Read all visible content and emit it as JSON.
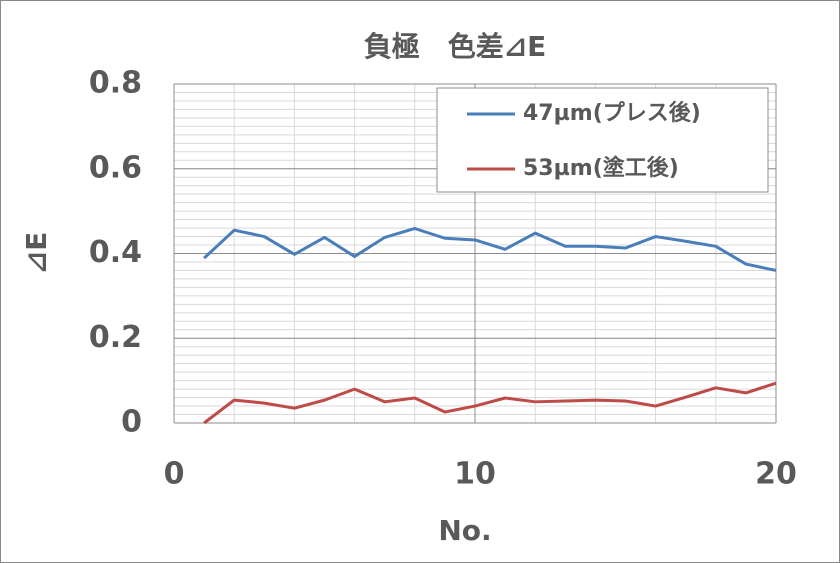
{
  "chart_data": {
    "type": "line",
    "title": "負極　色差⊿E",
    "x_label": "No.",
    "y_label": "⊿E",
    "x": [
      1,
      2,
      3,
      4,
      5,
      6,
      7,
      8,
      9,
      10,
      11,
      12,
      13,
      14,
      15,
      16,
      17,
      18,
      19,
      20
    ],
    "series": [
      {
        "name": "47µm(プレス後)",
        "color": "#4a7ebb",
        "values": [
          0.389,
          0.455,
          0.44,
          0.398,
          0.438,
          0.393,
          0.438,
          0.459,
          0.436,
          0.432,
          0.41,
          0.448,
          0.417,
          0.417,
          0.413,
          0.44,
          0.429,
          0.417,
          0.375,
          0.36
        ]
      },
      {
        "name": "53µm(塗工後)",
        "color": "#be4b48",
        "values": [
          0,
          0.054,
          0.047,
          0.035,
          0.054,
          0.08,
          0.05,
          0.059,
          0.026,
          0.04,
          0.059,
          0.05,
          0.052,
          0.054,
          0.052,
          0.04,
          0.061,
          0.083,
          0.071,
          0.094
        ]
      }
    ],
    "xlim": [
      0,
      20
    ],
    "xticks": [
      0,
      10,
      20
    ],
    "ylim": [
      0,
      0.8
    ],
    "yticks": [
      0,
      0.2,
      0.4,
      0.6,
      0.8
    ],
    "grid": true,
    "minor_grid_step": {
      "x": 2,
      "y": 0.02
    },
    "legend": "upper right"
  }
}
